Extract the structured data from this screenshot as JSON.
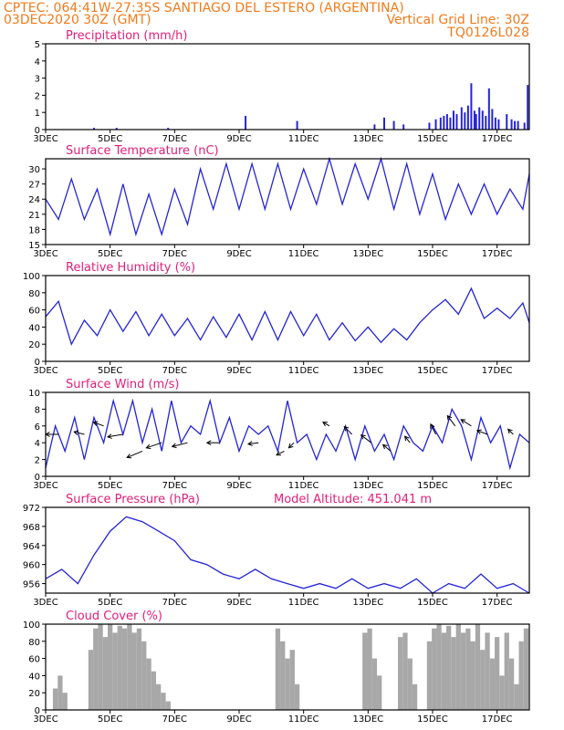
{
  "header": {
    "left_line1": "CPTEC:  064:41W-27:35S  SANTIAGO DEL ESTERO (ARGENTINA)",
    "left_line2": "03DEC2020 30Z (GMT)",
    "right_line2": "Vertical Grid Line: 30Z",
    "right_line3": "TQ0126L028"
  },
  "colors": {
    "header": "#f07b1b",
    "panel_title": "#e0207a",
    "line": "#2424d8",
    "cloud": "#a8a8a8"
  },
  "x_axis": {
    "tick_labels": [
      "3DEC",
      "5DEC",
      "7DEC",
      "9DEC",
      "11DEC",
      "13DEC",
      "15DEC",
      "17DEC"
    ],
    "tick_positions_day": [
      3,
      5,
      7,
      9,
      11,
      13,
      15,
      17
    ],
    "range_day": [
      3,
      18.0
    ]
  },
  "chart_data": [
    {
      "id": "precip",
      "type": "bar",
      "title": "Precipitation (mm/h)",
      "ylim": [
        0,
        5
      ],
      "yticks": [
        0,
        1,
        2,
        3,
        4,
        5
      ],
      "x_day": [
        4.5,
        5.2,
        6.8,
        9.2,
        10.8,
        13.2,
        13.5,
        13.8,
        14.1,
        14.9,
        15.1,
        15.25,
        15.35,
        15.45,
        15.55,
        15.65,
        15.75,
        15.9,
        16.0,
        16.1,
        16.2,
        16.3,
        16.35,
        16.45,
        16.55,
        16.65,
        16.75,
        16.85,
        16.95,
        17.05,
        17.3,
        17.45,
        17.55,
        17.65,
        17.85,
        17.95
      ],
      "values": [
        0.1,
        0.1,
        0.1,
        0.8,
        0.5,
        0.3,
        0.7,
        0.5,
        0.3,
        0.4,
        0.6,
        0.7,
        0.8,
        0.9,
        0.7,
        1.1,
        0.9,
        1.3,
        1.0,
        1.4,
        2.7,
        1.1,
        0.9,
        1.3,
        1.1,
        0.8,
        2.4,
        1.2,
        0.7,
        0.6,
        0.9,
        0.6,
        0.5,
        0.5,
        0.4,
        2.6
      ]
    },
    {
      "id": "temp",
      "type": "line",
      "title": "Surface Temperature (nC)",
      "ylim": [
        15,
        32
      ],
      "yticks": [
        15,
        18,
        21,
        24,
        27,
        30
      ],
      "x_day": [
        3.0,
        3.4,
        3.8,
        4.2,
        4.6,
        5.0,
        5.4,
        5.8,
        6.2,
        6.6,
        7.0,
        7.4,
        7.8,
        8.2,
        8.6,
        9.0,
        9.4,
        9.8,
        10.2,
        10.6,
        11.0,
        11.4,
        11.8,
        12.2,
        12.6,
        13.0,
        13.4,
        13.8,
        14.2,
        14.6,
        15.0,
        15.4,
        15.8,
        16.2,
        16.6,
        17.0,
        17.4,
        17.8,
        18.0
      ],
      "values": [
        24,
        20,
        28,
        20,
        26,
        17,
        27,
        17,
        25,
        17,
        26,
        19,
        30,
        22,
        31,
        22,
        31,
        22,
        31,
        22,
        30,
        23,
        32,
        23,
        31,
        24,
        32,
        22,
        31,
        21,
        29,
        20,
        27,
        21,
        27,
        21,
        26,
        22,
        29
      ]
    },
    {
      "id": "rh",
      "type": "line",
      "title": "Relative Humidity (%)",
      "ylim": [
        0,
        100
      ],
      "yticks": [
        0,
        20,
        40,
        60,
        80,
        100
      ],
      "x_day": [
        3.0,
        3.4,
        3.8,
        4.2,
        4.6,
        5.0,
        5.4,
        5.8,
        6.2,
        6.6,
        7.0,
        7.4,
        7.8,
        8.2,
        8.6,
        9.0,
        9.4,
        9.8,
        10.2,
        10.6,
        11.0,
        11.4,
        11.8,
        12.2,
        12.6,
        13.0,
        13.4,
        13.8,
        14.2,
        14.6,
        15.0,
        15.4,
        15.8,
        16.2,
        16.6,
        17.0,
        17.4,
        17.8,
        18.0
      ],
      "values": [
        52,
        70,
        20,
        48,
        30,
        60,
        35,
        58,
        30,
        55,
        30,
        50,
        25,
        52,
        28,
        55,
        25,
        58,
        25,
        58,
        30,
        55,
        25,
        45,
        24,
        40,
        22,
        38,
        25,
        45,
        60,
        72,
        55,
        85,
        50,
        62,
        50,
        68,
        45
      ]
    },
    {
      "id": "wind",
      "type": "line",
      "title": "Surface Wind (m/s)",
      "ylim": [
        0,
        10
      ],
      "yticks": [
        0,
        2,
        4,
        6,
        8,
        10
      ],
      "x_day": [
        3.0,
        3.3,
        3.6,
        3.9,
        4.2,
        4.5,
        4.8,
        5.1,
        5.4,
        5.7,
        6.0,
        6.3,
        6.6,
        6.9,
        7.2,
        7.5,
        7.8,
        8.1,
        8.4,
        8.7,
        9.0,
        9.3,
        9.6,
        9.9,
        10.2,
        10.5,
        10.8,
        11.1,
        11.4,
        11.7,
        12.0,
        12.3,
        12.6,
        12.9,
        13.2,
        13.5,
        13.8,
        14.1,
        14.4,
        14.7,
        15.0,
        15.3,
        15.6,
        15.9,
        16.2,
        16.5,
        16.8,
        17.1,
        17.4,
        17.7,
        18.0
      ],
      "values": [
        1,
        6,
        3,
        7,
        2,
        7,
        4,
        9,
        5,
        9,
        4,
        8,
        3,
        9,
        4,
        6,
        5,
        9,
        4,
        7,
        3,
        6,
        5,
        6,
        3,
        9,
        4,
        5,
        2,
        5,
        3,
        6,
        2,
        6,
        3,
        5,
        2,
        6,
        4,
        3,
        6,
        4,
        8,
        6,
        2,
        7,
        4,
        6,
        1,
        5,
        4
      ],
      "arrows": [
        {
          "x_day": 3.4,
          "v": 5,
          "dx": -10,
          "dy": 0
        },
        {
          "x_day": 4.2,
          "v": 5,
          "dx": -8,
          "dy": -2
        },
        {
          "x_day": 4.8,
          "v": 6,
          "dx": -8,
          "dy": -3
        },
        {
          "x_day": 5.4,
          "v": 5,
          "dx": -12,
          "dy": 2
        },
        {
          "x_day": 6.0,
          "v": 3,
          "dx": -12,
          "dy": 5
        },
        {
          "x_day": 6.6,
          "v": 4,
          "dx": -12,
          "dy": 4
        },
        {
          "x_day": 7.4,
          "v": 4,
          "dx": -12,
          "dy": 3
        },
        {
          "x_day": 8.4,
          "v": 4,
          "dx": -10,
          "dy": 0
        },
        {
          "x_day": 9.6,
          "v": 4,
          "dx": -8,
          "dy": 1
        },
        {
          "x_day": 10.4,
          "v": 3,
          "dx": -6,
          "dy": 3
        },
        {
          "x_day": 10.7,
          "v": 4,
          "dx": -4,
          "dy": 4
        },
        {
          "x_day": 11.8,
          "v": 6,
          "dx": -5,
          "dy": -3
        },
        {
          "x_day": 12.5,
          "v": 5,
          "dx": -6,
          "dy": -6
        },
        {
          "x_day": 13.1,
          "v": 4,
          "dx": -8,
          "dy": -6
        },
        {
          "x_day": 13.7,
          "v": 3,
          "dx": -6,
          "dy": -5
        },
        {
          "x_day": 14.3,
          "v": 4,
          "dx": -4,
          "dy": -5
        },
        {
          "x_day": 15.1,
          "v": 5,
          "dx": -4,
          "dy": -8
        },
        {
          "x_day": 15.7,
          "v": 6,
          "dx": -6,
          "dy": -8
        },
        {
          "x_day": 16.2,
          "v": 6,
          "dx": -8,
          "dy": -5
        },
        {
          "x_day": 16.7,
          "v": 5,
          "dx": -8,
          "dy": -3
        },
        {
          "x_day": 17.5,
          "v": 5,
          "dx": -4,
          "dy": -4
        }
      ]
    },
    {
      "id": "pressure",
      "type": "line",
      "title": "Surface Pressure (hPa)",
      "annotation": "Model Altitude: 451.041 m",
      "ylim": [
        954,
        972
      ],
      "yticks": [
        956,
        960,
        964,
        968,
        972
      ],
      "x_day": [
        3.0,
        3.5,
        4.0,
        4.5,
        5.0,
        5.5,
        6.0,
        6.5,
        7.0,
        7.5,
        8.0,
        8.5,
        9.0,
        9.5,
        10.0,
        10.5,
        11.0,
        11.5,
        12.0,
        12.5,
        13.0,
        13.5,
        14.0,
        14.5,
        15.0,
        15.5,
        16.0,
        16.5,
        17.0,
        17.5,
        18.0
      ],
      "values": [
        957,
        959,
        956,
        962,
        967,
        970,
        969,
        967,
        965,
        961,
        960,
        958,
        957,
        959,
        957,
        956,
        955,
        956,
        955,
        957,
        955,
        956,
        955,
        957,
        954,
        956,
        955,
        958,
        955,
        956,
        954
      ]
    },
    {
      "id": "cloud",
      "type": "bar",
      "title": "Cloud Cover (%)",
      "ylim": [
        0,
        100
      ],
      "yticks": [
        0,
        20,
        40,
        60,
        80,
        100
      ],
      "x_day": [
        3.3,
        3.45,
        3.6,
        4.4,
        4.55,
        4.7,
        4.85,
        5.0,
        5.15,
        5.3,
        5.45,
        5.6,
        5.75,
        5.9,
        6.05,
        6.2,
        6.35,
        6.5,
        6.65,
        6.8,
        10.2,
        10.35,
        10.5,
        10.65,
        10.8,
        12.9,
        13.05,
        13.2,
        13.35,
        14.0,
        14.15,
        14.3,
        14.45,
        14.9,
        15.05,
        15.2,
        15.35,
        15.5,
        15.65,
        15.8,
        15.95,
        16.1,
        16.25,
        16.4,
        16.55,
        16.7,
        16.85,
        17.0,
        17.15,
        17.3,
        17.45,
        17.6,
        17.75,
        17.9
      ],
      "values": [
        25,
        40,
        20,
        70,
        95,
        100,
        85,
        100,
        90,
        98,
        95,
        100,
        90,
        95,
        80,
        60,
        45,
        30,
        20,
        10,
        95,
        80,
        60,
        70,
        30,
        90,
        95,
        60,
        40,
        85,
        90,
        60,
        30,
        80,
        95,
        100,
        90,
        98,
        85,
        100,
        90,
        95,
        80,
        100,
        70,
        90,
        60,
        85,
        40,
        90,
        60,
        30,
        80,
        95
      ]
    }
  ]
}
